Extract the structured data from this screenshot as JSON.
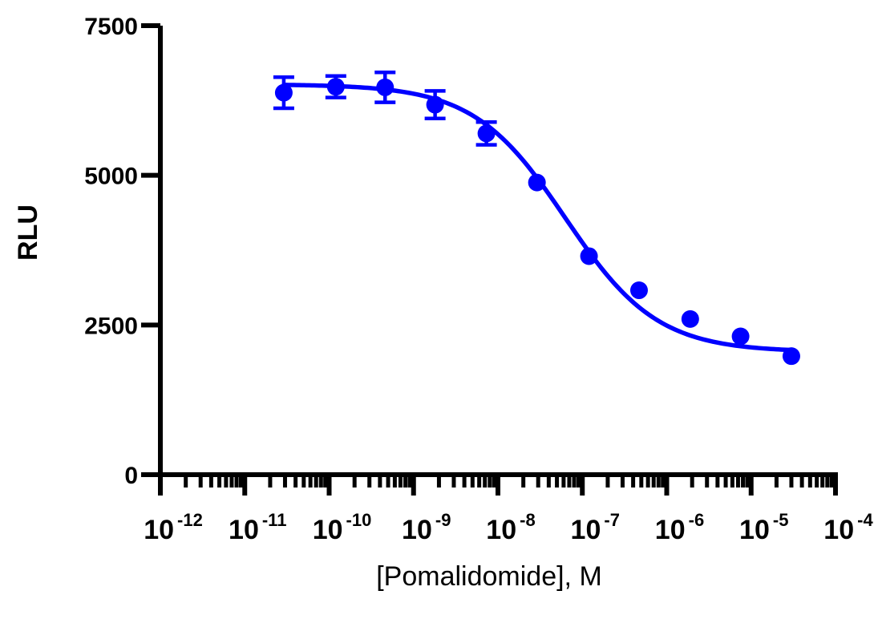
{
  "chart_data": {
    "type": "scatter",
    "title": "",
    "xlabel": "[Pomalidomide], M",
    "ylabel": "RLU",
    "x_scale": "log10",
    "xlim": [
      1e-12,
      0.0001
    ],
    "ylim": [
      0,
      7500
    ],
    "y_ticks": [
      0,
      2500,
      5000,
      7500
    ],
    "y_tick_labels": [
      "0",
      "2500",
      "5000",
      "7500"
    ],
    "x_tick_labels": [
      {
        "base": "10",
        "exp": "-12"
      },
      {
        "base": "10",
        "exp": "-11"
      },
      {
        "base": "10",
        "exp": "-10"
      },
      {
        "base": "10",
        "exp": "-9"
      },
      {
        "base": "10",
        "exp": "-8"
      },
      {
        "base": "10",
        "exp": "-7"
      },
      {
        "base": "10",
        "exp": "-6"
      },
      {
        "base": "10",
        "exp": "-5"
      },
      {
        "base": "10",
        "exp": "-4"
      }
    ],
    "grid": false,
    "color": "#0000ff",
    "series": [
      {
        "points": [
          {
            "x": 2.9e-11,
            "y": 6380,
            "err": 260
          },
          {
            "x": 1.2e-10,
            "y": 6480,
            "err": 180
          },
          {
            "x": 4.6e-10,
            "y": 6470,
            "err": 250
          },
          {
            "x": 1.8e-09,
            "y": 6180,
            "err": 230
          },
          {
            "x": 7.3e-09,
            "y": 5700,
            "err": 190
          },
          {
            "x": 2.9e-08,
            "y": 4880,
            "err": 0
          },
          {
            "x": 1.2e-07,
            "y": 3650,
            "err": 0
          },
          {
            "x": 4.7e-07,
            "y": 3080,
            "err": 0
          },
          {
            "x": 1.9e-06,
            "y": 2600,
            "err": 0
          },
          {
            "x": 7.5e-06,
            "y": 2310,
            "err": 0
          },
          {
            "x": 3e-05,
            "y": 1980,
            "err": 0
          }
        ],
        "fit": {
          "model": "four-parameter logistic",
          "top": 6520,
          "bottom": 2050,
          "log_ic50": -7.2,
          "hill_slope": 0.8
        }
      }
    ]
  }
}
